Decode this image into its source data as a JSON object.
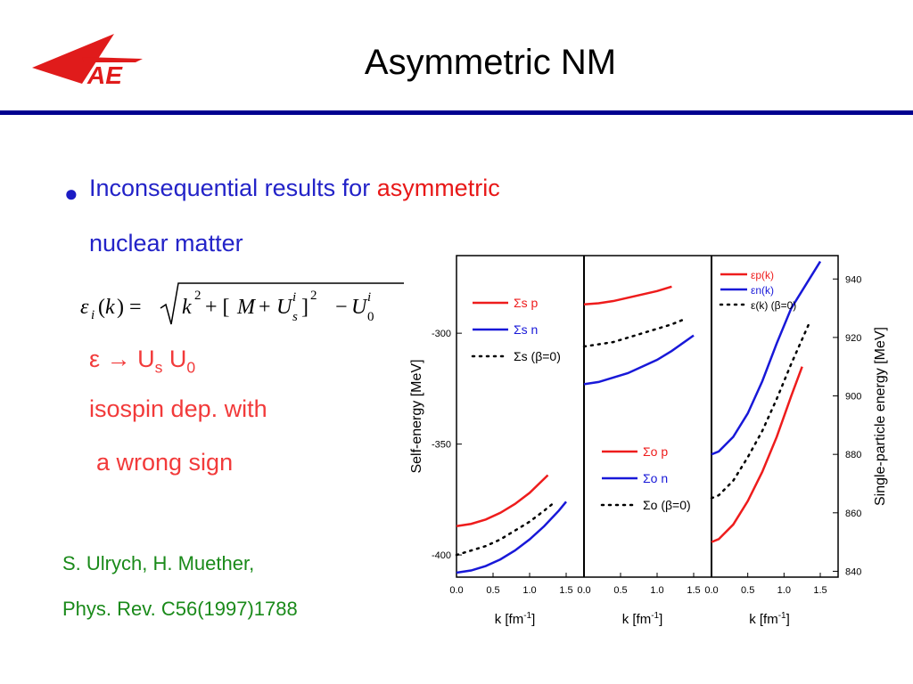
{
  "title": "Asymmetric NM",
  "bullet": {
    "text_blue": "Inconsequential results for ",
    "text_red": "asymmetric",
    "line2": "nuclear matter"
  },
  "formula_lines": {
    "arrow_line_eps": "ε",
    "arrow_line_arrow": "→",
    "arrow_line_us": "U",
    "arrow_line_us_sub": "s",
    "arrow_line_u0": "U",
    "arrow_line_u0_sub": "0",
    "isospin": "isospin dep. with",
    "wrong_sign": "a wrong sign"
  },
  "citation": {
    "authors": "S. Ulrych, H. Muether,",
    "ref": "Phys. Rev. C56(1997)1788"
  },
  "colors": {
    "title_rule": "#00008f",
    "proton": "#ee1c1c",
    "neutron": "#1818d8",
    "symmetric": "#000000"
  },
  "chart_data": [
    {
      "type": "line",
      "panel": "left",
      "ylabel": "Self-energy [MeV]",
      "xlabel": "k [fm-1]",
      "xlim": [
        0.0,
        1.5
      ],
      "ylim": [
        -410,
        -265
      ],
      "x_ticks": [
        "0.0",
        "0.5",
        "1.0",
        "1.5"
      ],
      "y_ticks": [
        -300,
        -350,
        -400
      ],
      "legend": [
        "Σs p",
        "Σs n",
        "Σs (β=0)"
      ],
      "series": [
        {
          "name": "Σs p",
          "color": "proton",
          "style": "solid",
          "x": [
            0,
            0.2,
            0.4,
            0.6,
            0.8,
            1.0,
            1.25
          ],
          "y": [
            -387,
            -386,
            -384,
            -381,
            -377,
            -372,
            -364
          ]
        },
        {
          "name": "Σs n",
          "color": "neutron",
          "style": "solid",
          "x": [
            0,
            0.2,
            0.4,
            0.6,
            0.8,
            1.0,
            1.2,
            1.4,
            1.5
          ],
          "y": [
            -408,
            -407,
            -405,
            -402,
            -398,
            -393,
            -387,
            -380,
            -376
          ]
        },
        {
          "name": "Σs (β=0)",
          "color": "symmetric",
          "style": "dotted",
          "x": [
            0,
            0.2,
            0.4,
            0.6,
            0.8,
            1.0,
            1.2,
            1.35
          ],
          "y": [
            -400,
            -398,
            -396,
            -393,
            -389,
            -385,
            -380,
            -376
          ]
        }
      ]
    },
    {
      "type": "line",
      "panel": "middle",
      "xlabel": "k [fm-1]",
      "xlim": [
        0.0,
        1.5
      ],
      "ylim": [
        -410,
        -265
      ],
      "x_ticks": [
        "0.0",
        "0.5",
        "1.0",
        "1.5"
      ],
      "legend": [
        "Σo p",
        "Σo n",
        "Σo (β=0)"
      ],
      "series": [
        {
          "name": "Σo p",
          "color": "proton",
          "style": "solid",
          "x": [
            0,
            0.2,
            0.4,
            0.6,
            0.8,
            1.0,
            1.2
          ],
          "y": [
            -287,
            -286.5,
            -285.5,
            -284,
            -282.5,
            -281,
            -279
          ]
        },
        {
          "name": "Σo n",
          "color": "neutron",
          "style": "solid",
          "x": [
            0,
            0.2,
            0.4,
            0.6,
            0.8,
            1.0,
            1.2,
            1.5
          ],
          "y": [
            -323,
            -322,
            -320,
            -318,
            -315,
            -312,
            -308,
            -301
          ]
        },
        {
          "name": "Σo (β=0)",
          "color": "symmetric",
          "style": "dotted",
          "x": [
            0,
            0.2,
            0.4,
            0.6,
            0.8,
            1.0,
            1.2,
            1.35
          ],
          "y": [
            -306,
            -305,
            -304,
            -302,
            -300,
            -298,
            -296,
            -294
          ]
        }
      ]
    },
    {
      "type": "line",
      "panel": "right",
      "ylabel": "Single-particle energy [MeV]",
      "xlabel": "k [fm-1]",
      "xlim": [
        0.0,
        1.5
      ],
      "ylim": [
        838,
        948
      ],
      "x_ticks": [
        "0.0",
        "0.5",
        "1.0",
        "1.5"
      ],
      "y_ticks": [
        840,
        860,
        880,
        900,
        920,
        940
      ],
      "legend": [
        "εp(k)",
        "εn(k)",
        "ε(k) (β=0)"
      ],
      "series": [
        {
          "name": "εp(k)",
          "color": "proton",
          "style": "solid",
          "x": [
            0,
            0.1,
            0.3,
            0.5,
            0.7,
            0.9,
            1.1,
            1.25
          ],
          "y": [
            850,
            851,
            856,
            864,
            874,
            886,
            900,
            910
          ]
        },
        {
          "name": "εn(k)",
          "color": "neutron",
          "style": "solid",
          "x": [
            0,
            0.1,
            0.3,
            0.5,
            0.7,
            0.9,
            1.1,
            1.3,
            1.5
          ],
          "y": [
            880,
            881,
            886,
            894,
            905,
            918,
            930,
            938,
            946
          ]
        },
        {
          "name": "ε(k) (β=0)",
          "color": "symmetric",
          "style": "dotted",
          "x": [
            0,
            0.1,
            0.3,
            0.5,
            0.7,
            0.9,
            1.1,
            1.35
          ],
          "y": [
            865,
            866,
            871,
            879,
            888,
            899,
            911,
            925
          ]
        }
      ]
    }
  ]
}
